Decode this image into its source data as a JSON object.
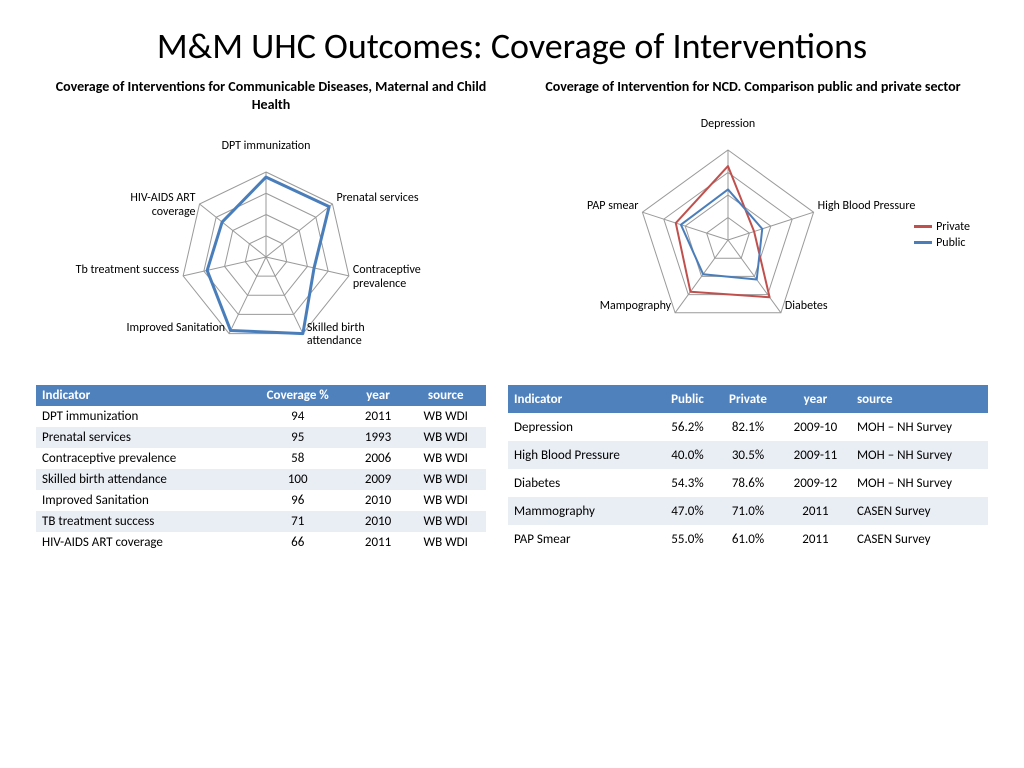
{
  "title": "M&M UHC Outcomes: Coverage of Interventions",
  "colors": {
    "header_bg": "#4f81bd",
    "header_text": "#ffffff",
    "row_alt": "#e9edf4",
    "grid": "#9a9a9a",
    "series_single": "#4a7ebb",
    "series_private": "#c0504d",
    "series_public": "#4a7ebb",
    "background": "#ffffff"
  },
  "chart_left": {
    "title": "Coverage of Interventions for  Communicable Diseases,  Maternal and Child Health",
    "type": "radar",
    "max": 100,
    "rings": 4,
    "line_width": 3,
    "axes": [
      "DPT immunization",
      "Prenatal services",
      "Contraceptive prevalence",
      "Skilled birth attendance",
      "Improved Sanitation",
      "Tb treatment success",
      "HIV-AIDS ART coverage"
    ],
    "series": [
      {
        "name": "Coverage",
        "color": "#4a7ebb",
        "values": [
          94,
          95,
          58,
          100,
          96,
          71,
          66
        ]
      }
    ]
  },
  "chart_right": {
    "title": "Coverage of Intervention for NCD. Comparison public and private sector",
    "type": "radar",
    "max": 100,
    "rings": 4,
    "line_width": 2,
    "axes": [
      "Depression",
      "High Blood Pressure",
      "Diabetes",
      "Mampography",
      "PAP smear"
    ],
    "series": [
      {
        "name": "Private",
        "color": "#c0504d",
        "values": [
          82.1,
          30.5,
          78.6,
          71.0,
          61.0
        ]
      },
      {
        "name": "Public",
        "color": "#4a7ebb",
        "values": [
          56.2,
          40.0,
          54.3,
          47.0,
          55.0
        ]
      }
    ],
    "legend": [
      "Private",
      "Public"
    ]
  },
  "table_left": {
    "columns": [
      "Indicator",
      "Coverage %",
      "year",
      "source"
    ],
    "col_align": [
      "left",
      "center",
      "center",
      "center"
    ],
    "rows": [
      [
        "DPT immunization",
        "94",
        "2011",
        "WB WDI"
      ],
      [
        "Prenatal services",
        "95",
        "1993",
        "WB WDI"
      ],
      [
        "Contraceptive prevalence",
        "58",
        "2006",
        "WB WDI"
      ],
      [
        "Skilled birth attendance",
        "100",
        "2009",
        "WB WDI"
      ],
      [
        "Improved Sanitation",
        "96",
        "2010",
        "WB WDI"
      ],
      [
        "TB treatment success",
        "71",
        "2010",
        "WB WDI"
      ],
      [
        " HIV-AIDS ART coverage",
        "66",
        "2011",
        "WB WDI"
      ]
    ]
  },
  "table_right": {
    "columns": [
      "Indicator",
      "Public",
      "Private",
      "year",
      "source"
    ],
    "col_align": [
      "left",
      "center",
      "center",
      "center",
      "left"
    ],
    "rows": [
      [
        "Depression",
        "56.2%",
        "82.1%",
        "2009-10",
        "MOH – NH Survey"
      ],
      [
        "High Blood Pressure",
        "40.0%",
        "30.5%",
        "2009-11",
        "MOH – NH Survey"
      ],
      [
        "Diabetes",
        "54.3%",
        "78.6%",
        "2009-12",
        "MOH – NH Survey"
      ],
      [
        "Mammography",
        "47.0%",
        "71.0%",
        "2011",
        "CASEN Survey"
      ],
      [
        "PAP Smear",
        "55.0%",
        "61.0%",
        "2011",
        "CASEN Survey"
      ]
    ]
  }
}
